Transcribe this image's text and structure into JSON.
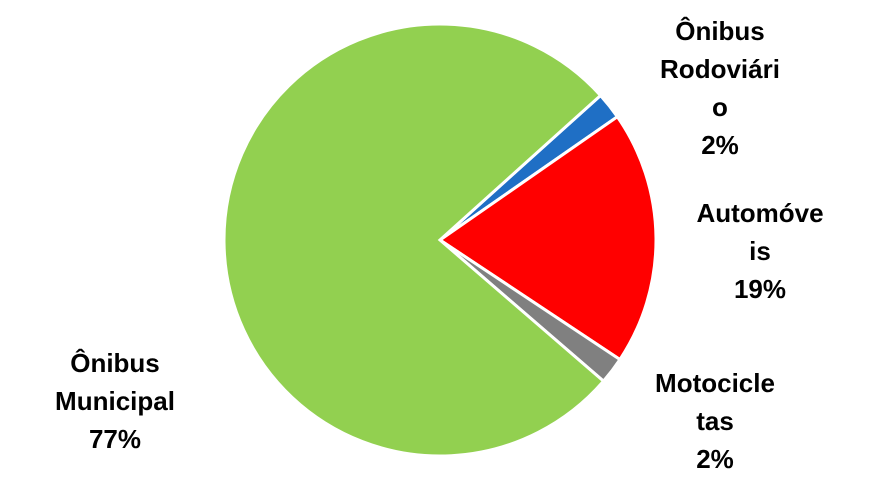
{
  "chart_data": {
    "type": "pie",
    "categories": [
      "Ônibus Rodoviário",
      "Automóveis",
      "Motocicletas",
      "Ônibus Municipal"
    ],
    "values": [
      2,
      19,
      2,
      77
    ],
    "value_labels": [
      "2%",
      "19%",
      "2%",
      "77%"
    ],
    "colors": [
      "#1f6fc5",
      "#ff0000",
      "#808080",
      "#92d050"
    ]
  }
}
